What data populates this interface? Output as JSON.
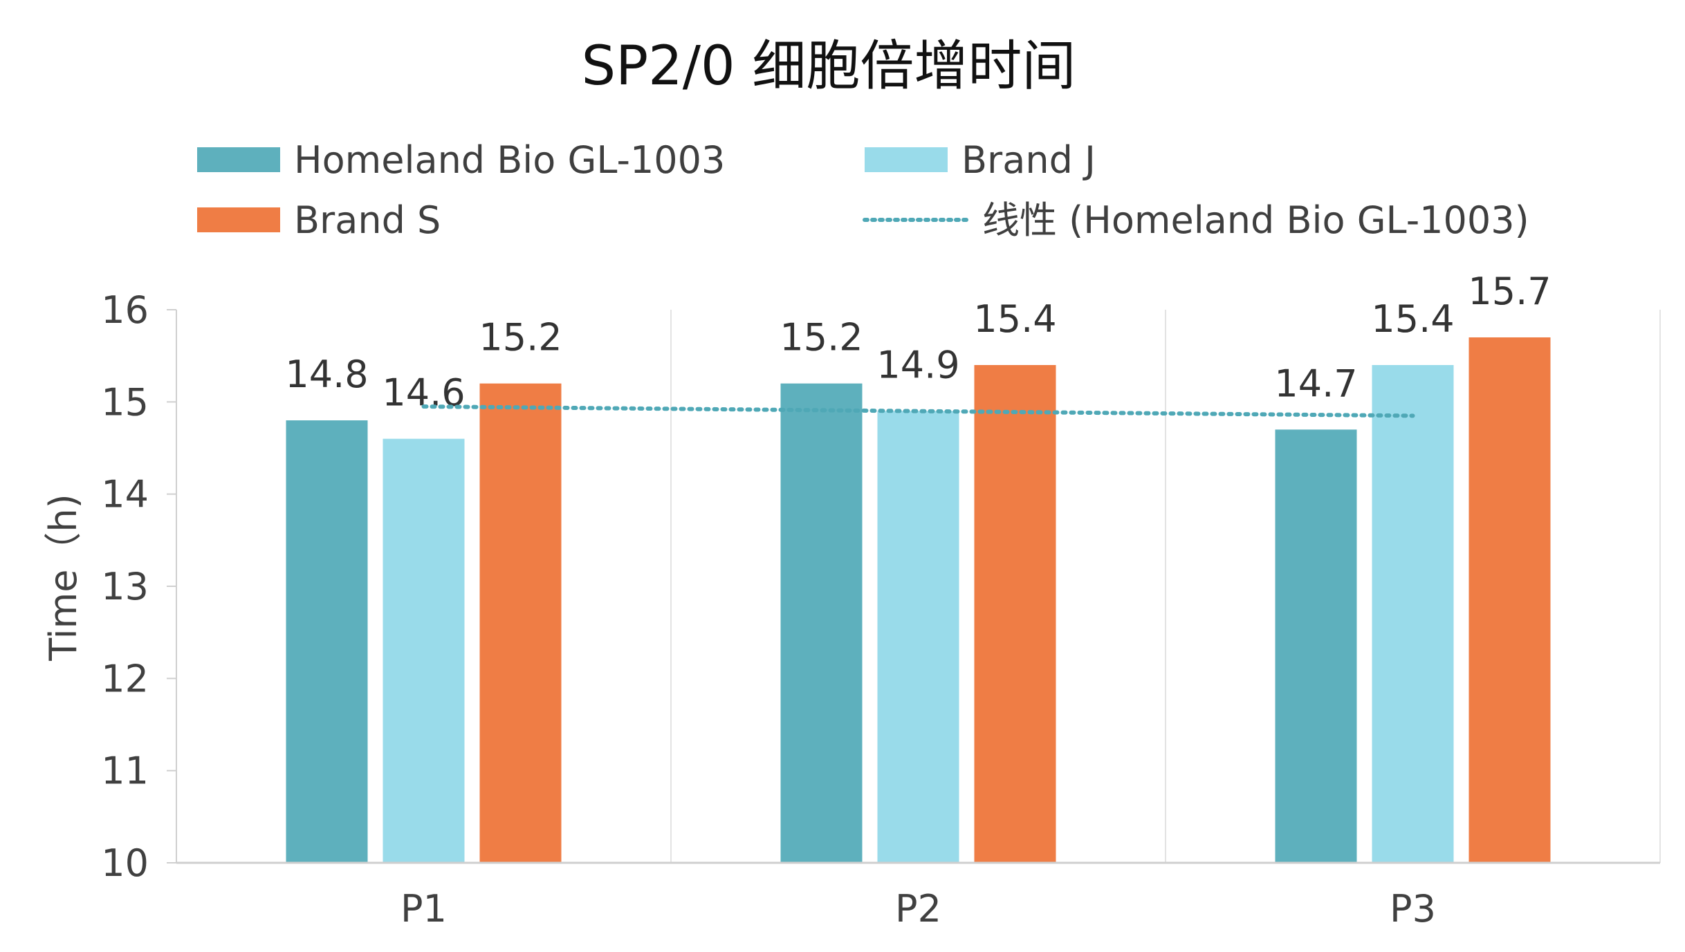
{
  "chart_data": {
    "type": "bar",
    "title": "SP2/0 细胞倍增时间",
    "xlabel": "",
    "ylabel": "Time（h)",
    "categories": [
      "P1",
      "P2",
      "P3"
    ],
    "ylim": [
      10,
      16
    ],
    "yticks": [
      10,
      11,
      12,
      13,
      14,
      15,
      16
    ],
    "grid": "vertical",
    "legend_position": "top",
    "series": [
      {
        "name": "Homeland Bio GL-1003",
        "color": "#5eb0bd",
        "values": [
          14.8,
          15.2,
          14.7
        ]
      },
      {
        "name": "Brand J",
        "color": "#99dbea",
        "values": [
          14.6,
          14.9,
          15.4
        ]
      },
      {
        "name": "Brand S",
        "color": "#ef7d45",
        "values": [
          15.2,
          15.4,
          15.7
        ]
      }
    ],
    "trendline": {
      "name": "线性 (Homeland Bio GL-1003)",
      "type": "linear",
      "of_series": "Homeland Bio GL-1003",
      "color": "#4fa8b6",
      "style": "dotted"
    }
  }
}
